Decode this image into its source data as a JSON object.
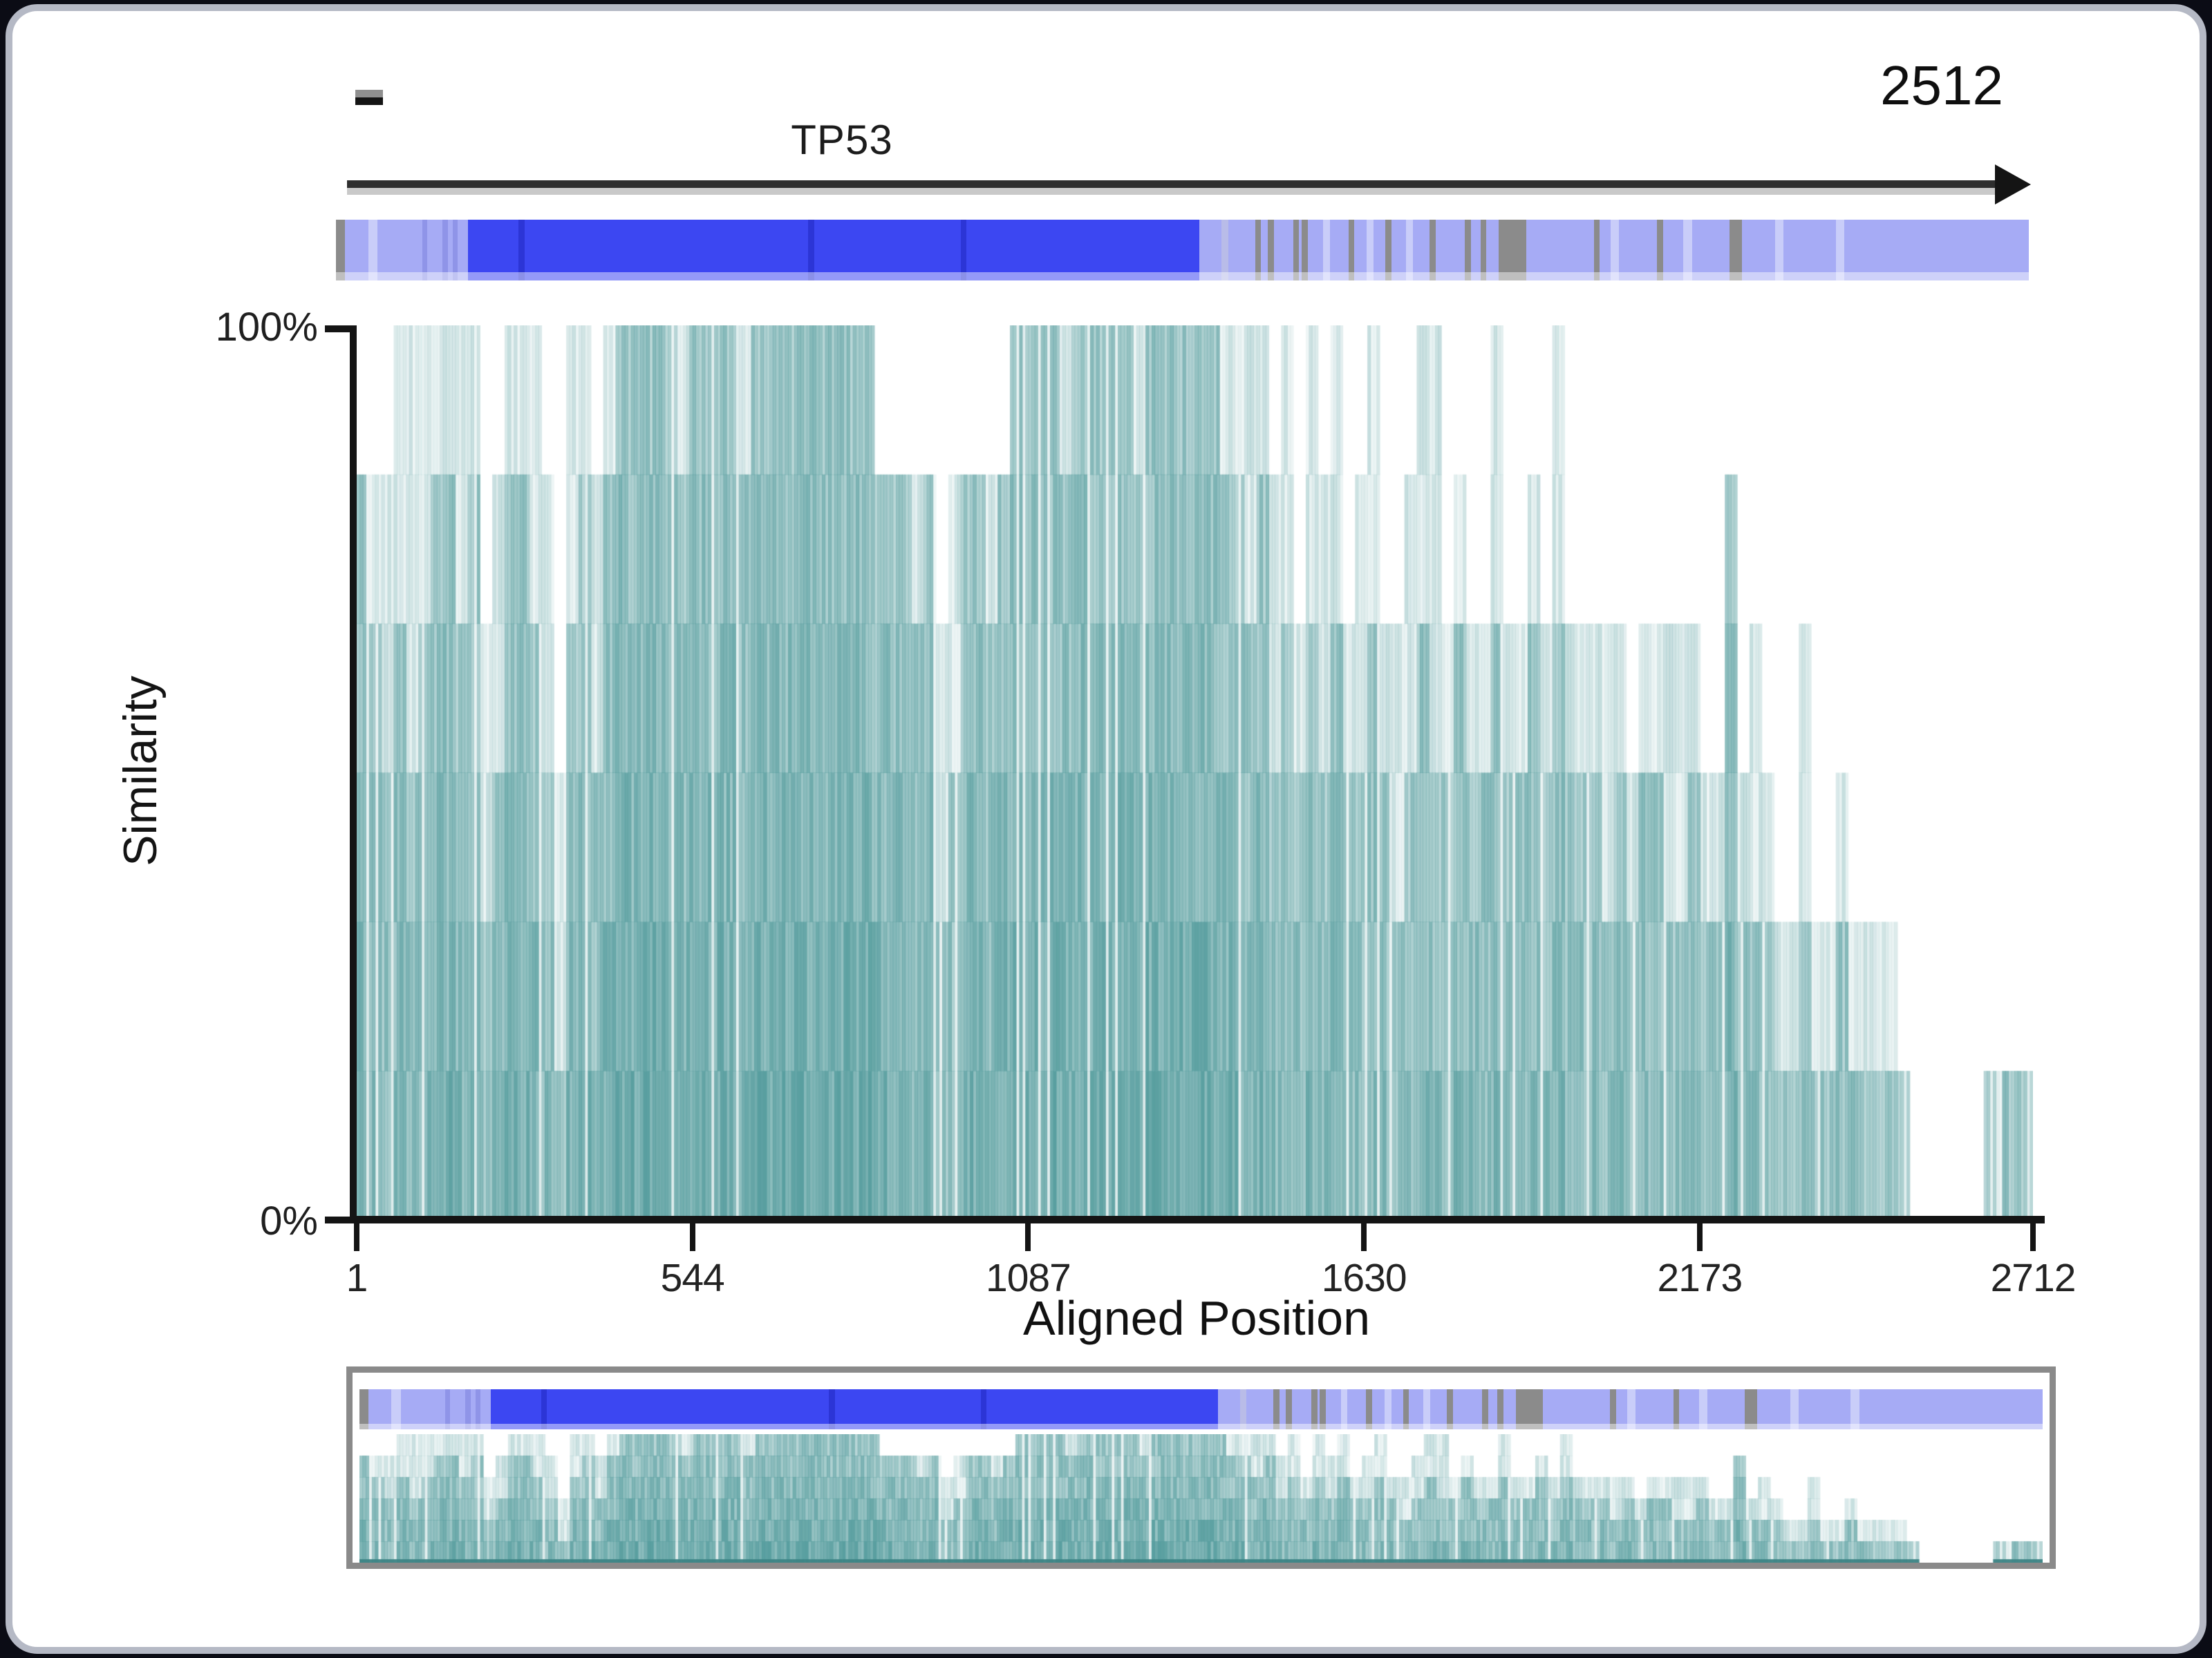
{
  "window": {
    "background": "#0b0c15",
    "card_border": "#b5b9c5",
    "card_background": "#ffffff"
  },
  "gene_track": {
    "start_dash": "-",
    "name_label": "TP53",
    "end_label": "2512",
    "arrow_color": "#2e2e2e",
    "track_colors": {
      "base": "#a6abf5",
      "cds": "#3c47f2",
      "cdsline": "#2c35d6",
      "gray": "#8b8b8b",
      "lightgray": "#b9bce8",
      "light": "#c9cdf9",
      "mid": "#8f94e8"
    },
    "track_segments": [
      [
        0.0,
        0.55,
        "gray"
      ],
      [
        1.9,
        2.45,
        "light"
      ],
      [
        5.1,
        5.4,
        "mid"
      ],
      [
        6.3,
        6.6,
        "mid"
      ],
      [
        6.9,
        7.2,
        "mid"
      ],
      [
        7.8,
        51.0,
        "cds"
      ],
      [
        10.8,
        11.15,
        "cdsline"
      ],
      [
        27.9,
        28.25,
        "cdsline"
      ],
      [
        36.9,
        37.25,
        "cdsline"
      ],
      [
        52.3,
        52.7,
        "lightgray"
      ],
      [
        54.3,
        54.65,
        "gray"
      ],
      [
        55.05,
        55.4,
        "gray"
      ],
      [
        56.55,
        56.9,
        "gray"
      ],
      [
        57.05,
        57.4,
        "gray"
      ],
      [
        58.3,
        58.7,
        "light"
      ],
      [
        59.8,
        60.15,
        "gray"
      ],
      [
        60.9,
        61.3,
        "light"
      ],
      [
        62.0,
        62.35,
        "gray"
      ],
      [
        63.2,
        63.6,
        "light"
      ],
      [
        64.6,
        64.95,
        "gray"
      ],
      [
        66.7,
        67.05,
        "gray"
      ],
      [
        67.6,
        67.95,
        "gray"
      ],
      [
        68.7,
        70.3,
        "gray"
      ],
      [
        74.3,
        74.65,
        "gray"
      ],
      [
        75.3,
        75.8,
        "light"
      ],
      [
        78.05,
        78.4,
        "gray"
      ],
      [
        79.6,
        80.1,
        "light"
      ],
      [
        82.3,
        83.05,
        "gray"
      ],
      [
        85.0,
        85.5,
        "light"
      ],
      [
        88.6,
        89.1,
        "light"
      ]
    ]
  },
  "chart": {
    "ylabel": "Similarity",
    "xlabel": "Aligned Position",
    "y_top_label": "100%",
    "y_bottom_label": "0%"
  },
  "chart_data": {
    "type": "bar",
    "title": "",
    "xlabel": "Aligned Position",
    "ylabel": "Similarity",
    "x_ticks": [
      1,
      544,
      1087,
      1630,
      2173,
      2712
    ],
    "y_tick_labels": [
      "100%",
      "0%"
    ],
    "xlim": [
      1,
      2712
    ],
    "ylim": [
      0,
      100
    ],
    "grid": false,
    "legend": "none",
    "bar_color_rgb": [
      86,
      157,
      158
    ],
    "levels_percent": [
      16.7,
      33.3,
      50,
      66.7,
      83.3,
      100
    ],
    "gene_region_end": 2512,
    "bin_size_positions": 20,
    "note": "similarity per aligned position, quantized to sixths; solid = dense bar height %, halo = light bar extension height %; each bin covers 20 alignment positions",
    "series": [
      {
        "name": "similarity_solid",
        "values": [
          83,
          67,
          50,
          67,
          50,
          67,
          83,
          83,
          67,
          83,
          33,
          50,
          83,
          83,
          67,
          50,
          17,
          67,
          83,
          50,
          83,
          100,
          100,
          100,
          100,
          100,
          83,
          100,
          100,
          100,
          100,
          83,
          100,
          100,
          100,
          100,
          100,
          100,
          100,
          100,
          100,
          100,
          83,
          83,
          83,
          67,
          83,
          33,
          50,
          83,
          83,
          67,
          83,
          100,
          100,
          100,
          100,
          83,
          100,
          100,
          100,
          100,
          100,
          83,
          100,
          100,
          100,
          100,
          100,
          100,
          83,
          83,
          67,
          83,
          50,
          67,
          50,
          67,
          50,
          67,
          50,
          50,
          67,
          50,
          33,
          50,
          67,
          50,
          50,
          67,
          50,
          50,
          67,
          50,
          50,
          67,
          50,
          67,
          50,
          50,
          50,
          33,
          50,
          33,
          50,
          50,
          33,
          33,
          50,
          33,
          33,
          83,
          33,
          33,
          33,
          17,
          17,
          33,
          17,
          17,
          33,
          17,
          17,
          17,
          17,
          17,
          0,
          0,
          0,
          0,
          0,
          0,
          17,
          17,
          17,
          17
        ]
      },
      {
        "name": "similarity_halo",
        "values": [
          83,
          83,
          83,
          100,
          100,
          100,
          100,
          100,
          100,
          100,
          67,
          83,
          100,
          100,
          100,
          83,
          50,
          100,
          100,
          83,
          100,
          100,
          100,
          100,
          100,
          100,
          100,
          100,
          100,
          100,
          100,
          100,
          100,
          100,
          100,
          100,
          100,
          100,
          100,
          100,
          100,
          100,
          83,
          83,
          83,
          83,
          83,
          67,
          83,
          83,
          83,
          83,
          83,
          100,
          100,
          100,
          100,
          100,
          100,
          100,
          100,
          100,
          100,
          100,
          100,
          100,
          100,
          100,
          100,
          100,
          100,
          100,
          100,
          100,
          83,
          100,
          67,
          100,
          83,
          100,
          67,
          83,
          100,
          67,
          67,
          83,
          100,
          100,
          67,
          83,
          67,
          67,
          100,
          67,
          67,
          83,
          67,
          100,
          67,
          67,
          67,
          67,
          67,
          50,
          67,
          67,
          67,
          67,
          67,
          50,
          50,
          83,
          50,
          67,
          50,
          33,
          33,
          67,
          33,
          33,
          50,
          33,
          33,
          33,
          33,
          17,
          0,
          0,
          0,
          0,
          0,
          0,
          17,
          17,
          17,
          17
        ]
      }
    ]
  },
  "minimap": {
    "border_color": "#8a8a8a",
    "description": "overview thumbnail of annotation track and similarity bars"
  }
}
